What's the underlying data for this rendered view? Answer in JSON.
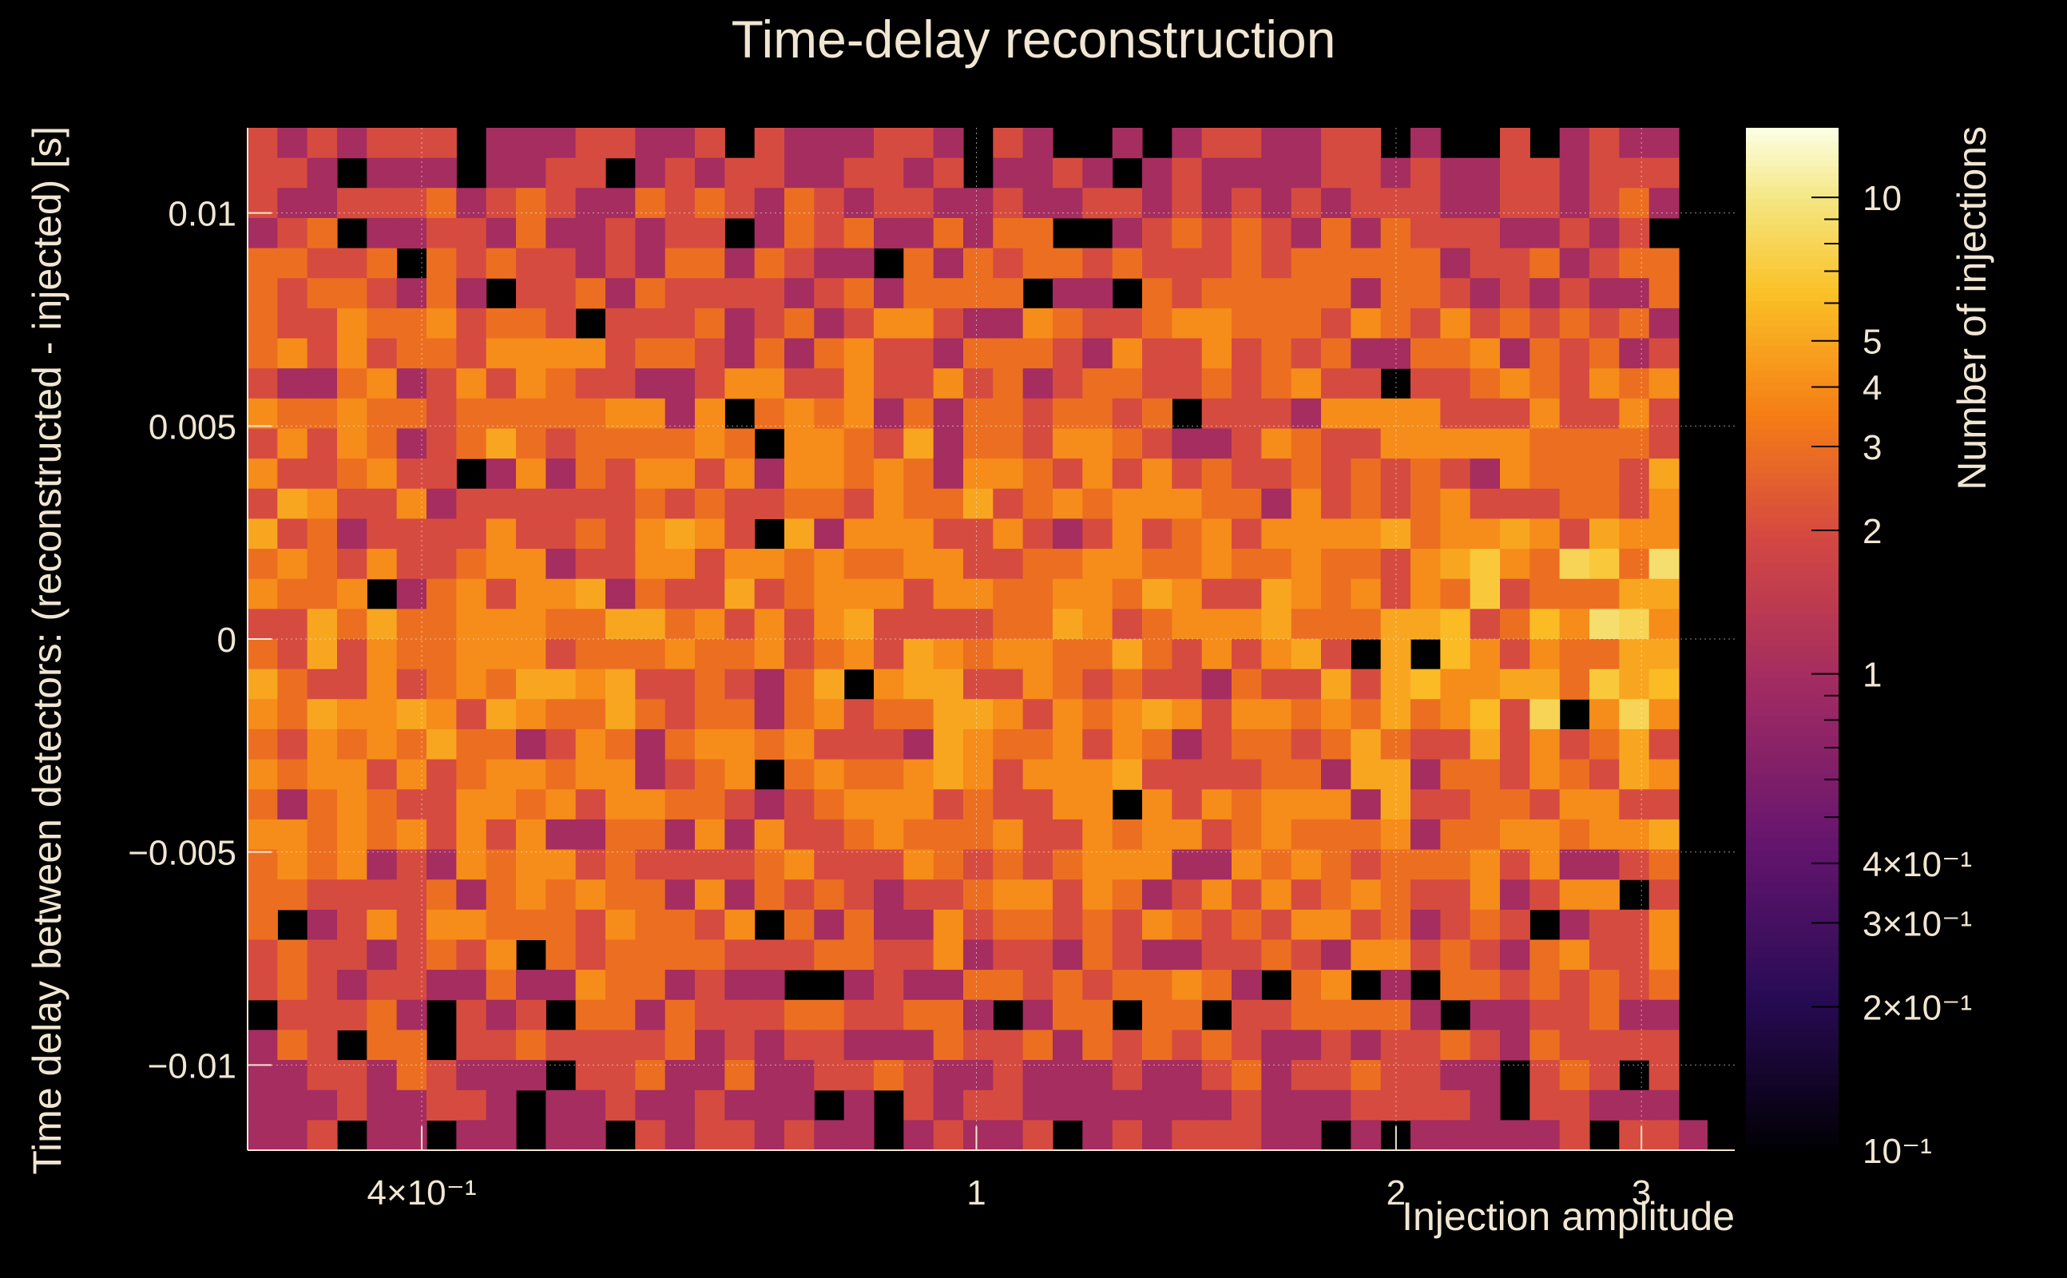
{
  "chart_data": {
    "type": "heatmap",
    "title": "Time-delay reconstruction",
    "xlabel": "Injection amplitude",
    "ylabel": "Time delay between detectors: (reconstructed - injected) [s]",
    "zlabel": "Number of injections",
    "x_scale": "log",
    "xlim": [
      0.3,
      3.5
    ],
    "ylim": [
      -0.012,
      0.012
    ],
    "zlim": [
      0.1,
      14
    ],
    "z_scale": "log",
    "colormap": "inferno",
    "grid": true,
    "x_ticks": [
      {
        "value": 0.4,
        "label": "4×10⁻¹"
      },
      {
        "value": 1,
        "label": "1"
      },
      {
        "value": 2,
        "label": "2"
      },
      {
        "value": 3,
        "label": "3"
      }
    ],
    "y_ticks": [
      {
        "value": 0.01,
        "label": "0.01"
      },
      {
        "value": 0.005,
        "label": "0.005"
      },
      {
        "value": 0,
        "label": "0"
      },
      {
        "value": -0.005,
        "label": "−0.005"
      },
      {
        "value": -0.01,
        "label": "−0.01"
      }
    ],
    "z_ticks": [
      {
        "value": 10,
        "label": "10"
      },
      {
        "value": 5,
        "label": "5"
      },
      {
        "value": 4,
        "label": "4"
      },
      {
        "value": 3,
        "label": "3"
      },
      {
        "value": 2,
        "label": "2"
      },
      {
        "value": 1,
        "label": "1"
      },
      {
        "value": 0.4,
        "label": "4×10⁻¹"
      },
      {
        "value": 0.3,
        "label": "3×10⁻¹"
      },
      {
        "value": 0.2,
        "label": "2×10⁻¹"
      },
      {
        "value": 0.1,
        "label": "10⁻¹"
      }
    ],
    "bins": {
      "x_count": 48,
      "y_count": 34,
      "description_values": "counts per bin (x = injection amplitude, y = time delay)",
      "peak_region": {
        "x": [
          2.2,
          3.3
        ],
        "y": [
          -0.002,
          0.003
        ],
        "max_count": 12
      },
      "typical_count": 2.5
    }
  }
}
